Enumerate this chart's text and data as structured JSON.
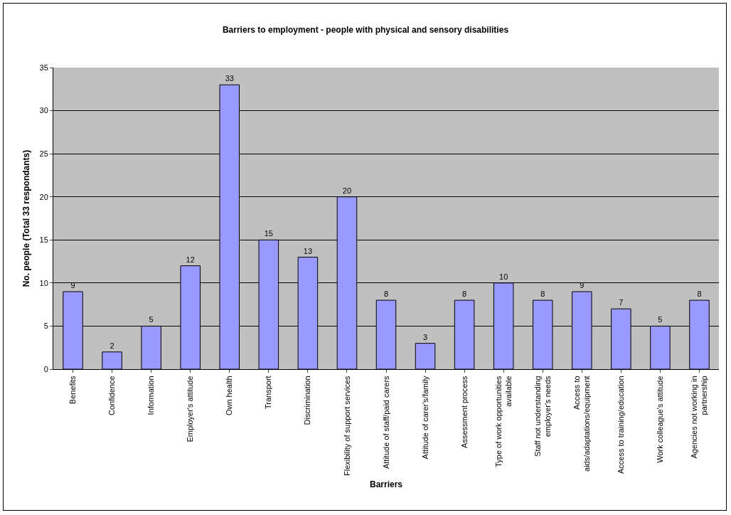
{
  "chart_data": {
    "type": "bar",
    "title": "Barriers to employment - people with physical and sensory disabilities",
    "xlabel": "Barriers",
    "ylabel": "No. people (Total 33 respondants)",
    "categories": [
      "Benefits",
      "Confidence",
      "Information",
      "Employer's attitude",
      "Own health",
      "Transport",
      "Discrimination",
      "Flexibility of support services",
      "Attitude of staff/paid carers",
      "Attitude of carer's/family",
      "Assessment process",
      "Type of work opportunities available",
      "Staff not understanding employer's needs",
      "Access to aids/adaptations/equipment",
      "Access to training/education",
      "Work colleague's attitude",
      "Agencies not working in partnership"
    ],
    "values": [
      9,
      2,
      5,
      12,
      33,
      15,
      13,
      20,
      8,
      3,
      8,
      10,
      8,
      9,
      7,
      5,
      8
    ],
    "color": "#9999ff",
    "ylim": [
      0,
      35
    ],
    "yticks": [
      0,
      5,
      10,
      15,
      20,
      25,
      30,
      35
    ],
    "grid": "y",
    "data_labels": true
  }
}
